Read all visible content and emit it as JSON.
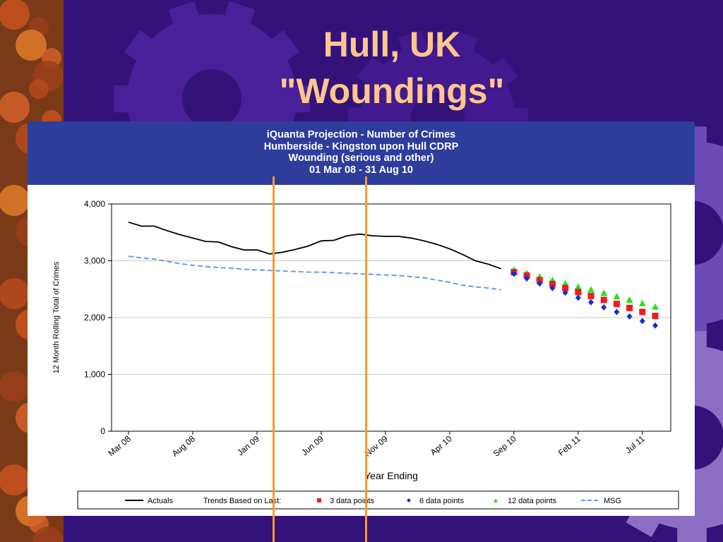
{
  "slide": {
    "title_line1": "Hull, UK",
    "title_line2": "\"Woundings\"",
    "background_color": "#33127a",
    "title_color": "#ffc78e",
    "accent_line_color": "#ff9a2e"
  },
  "chart_header": {
    "line1": "iQuanta Projection - Number of Crimes",
    "line2": "Humberside - Kingston upon Hull CDRP",
    "line3": "Wounding (serious and other)",
    "line4": "01 Mar 08 - 31 Aug 10",
    "background": "#2e3d9c"
  },
  "chart_data": {
    "type": "line",
    "title": "iQuanta Projection - Number of Crimes",
    "xlabel": "Year Ending",
    "ylabel": "12 Month Rolling Total of Crimes",
    "ylim": [
      0,
      4000
    ],
    "yticks": [
      "0",
      "1,000",
      "2,000",
      "3,000",
      "4,000"
    ],
    "ytick_values": [
      0,
      1000,
      2000,
      3000,
      4000
    ],
    "xticks": [
      "Mar 08",
      "Aug 08",
      "Jan 09",
      "Jun 09",
      "Nov 09",
      "Apr 10",
      "Sep 10",
      "Feb 11",
      "Jul 11"
    ],
    "xtick_index": [
      0,
      5,
      10,
      15,
      20,
      25,
      30,
      35,
      40
    ],
    "x_count": 42,
    "grid": "horizontal",
    "legend_position": "bottom",
    "legend_trends_label": "Trends Based on Last:",
    "series": [
      {
        "name": "Actuals",
        "style": "solid",
        "color": "#000000",
        "start_index": 0,
        "values": [
          3680,
          3610,
          3610,
          3530,
          3460,
          3400,
          3340,
          3330,
          3250,
          3190,
          3190,
          3120,
          3150,
          3200,
          3260,
          3350,
          3360,
          3440,
          3470,
          3440,
          3430,
          3430,
          3400,
          3350,
          3290,
          3210,
          3110,
          3000,
          2940,
          2860
        ]
      },
      {
        "name": "MSG",
        "style": "dashed",
        "color": "#6c9be0",
        "start_index": 0,
        "values": [
          3080,
          3050,
          3030,
          2990,
          2950,
          2920,
          2900,
          2880,
          2870,
          2850,
          2840,
          2830,
          2820,
          2810,
          2800,
          2800,
          2790,
          2780,
          2770,
          2760,
          2750,
          2740,
          2720,
          2700,
          2660,
          2620,
          2570,
          2540,
          2520,
          2490
        ]
      },
      {
        "name": "12 data points",
        "style": "triangle",
        "color": "#22e51a",
        "start_index": 30,
        "values": [
          2840,
          2780,
          2720,
          2660,
          2600,
          2540,
          2490,
          2430,
          2370,
          2310,
          2250,
          2190
        ]
      },
      {
        "name": "3 data points",
        "style": "square",
        "color": "#ee1c1c",
        "start_index": 30,
        "values": [
          2800,
          2740,
          2660,
          2590,
          2520,
          2450,
          2380,
          2310,
          2240,
          2170,
          2100,
          2030
        ]
      },
      {
        "name": "6 data points",
        "style": "diamond",
        "color": "#1030d8",
        "start_index": 30,
        "values": [
          2770,
          2690,
          2600,
          2520,
          2440,
          2350,
          2270,
          2180,
          2100,
          2020,
          1940,
          1860
        ]
      }
    ],
    "legend_order": [
      "Actuals",
      "3 data points",
      "6 data points",
      "12 data points",
      "MSG"
    ]
  }
}
